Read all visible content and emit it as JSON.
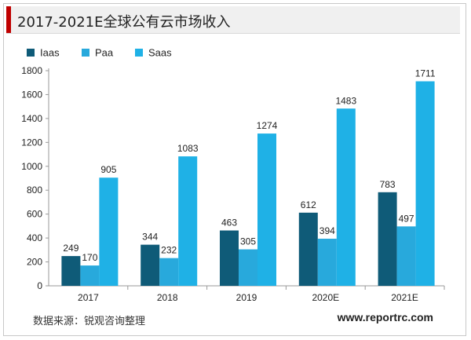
{
  "title": "2017-2021E全球公有云市场收入",
  "source": "数据来源：锐观咨询整理",
  "website": "www.reportrc.com",
  "chart_data": {
    "type": "bar",
    "title": "2017-2021E全球公有云市场收入",
    "xlabel": "",
    "ylabel": "",
    "categories": [
      "2017",
      "2018",
      "2019",
      "2020E",
      "2021E"
    ],
    "series": [
      {
        "name": "Iaas",
        "color": "#0f5b78",
        "values": [
          249,
          344,
          463,
          612,
          783
        ]
      },
      {
        "name": "Paa",
        "color": "#28a9dc",
        "values": [
          170,
          232,
          305,
          394,
          497
        ]
      },
      {
        "name": "Saas",
        "color": "#1fb1e6",
        "values": [
          905,
          1083,
          1274,
          1483,
          1711
        ]
      }
    ],
    "ylim": [
      0,
      1800
    ],
    "yticks": [
      0,
      200,
      400,
      600,
      800,
      1000,
      1200,
      1400,
      1600,
      1800
    ],
    "grid": false,
    "legend": "top-left",
    "data_labels": true
  }
}
